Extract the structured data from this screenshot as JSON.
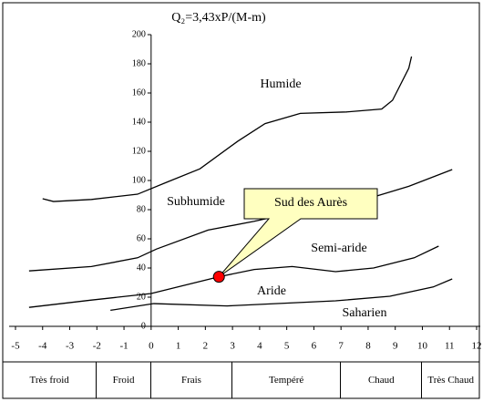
{
  "chart_data": {
    "type": "line",
    "title": "Q₂=3,43xP/(M-m)",
    "xlim": [
      -5,
      12
    ],
    "xticks": [
      -5,
      -4,
      -3,
      -2,
      -1,
      0,
      1,
      2,
      3,
      4,
      5,
      6,
      7,
      8,
      9,
      10,
      11,
      12
    ],
    "ylim": [
      0,
      200
    ],
    "yticks": [
      0,
      20,
      40,
      60,
      80,
      100,
      120,
      140,
      160,
      180,
      200
    ],
    "color": "#000000",
    "series": [
      {
        "x": [
          -4,
          -3.6,
          -2.2,
          -0.5,
          0.6,
          1.8,
          3.2,
          4.2,
          5.5,
          7.2,
          8.5,
          8.9,
          9.5,
          9.6
        ],
        "values": [
          87.5,
          85.6,
          87,
          90.6,
          99,
          108,
          127,
          139,
          146,
          147,
          149,
          155,
          177,
          185
        ]
      },
      {
        "x": [
          -4.5,
          -2.2,
          -0.5,
          0.2,
          2.1,
          3.8,
          5.5,
          7.9,
          9.5,
          11.1
        ],
        "values": [
          38,
          41,
          47,
          53,
          66,
          72,
          79,
          87,
          96,
          107.5
        ]
      },
      {
        "x": [
          -4.5,
          -2.2,
          0,
          2.5,
          3.8,
          5.2,
          6.8,
          8.2,
          9.7,
          10.6
        ],
        "values": [
          13,
          18,
          22.5,
          34,
          39,
          41,
          37.5,
          40,
          47,
          55
        ]
      },
      {
        "x": [
          -1.5,
          0.1,
          2.8,
          6.8,
          8.8,
          10.4,
          11.1
        ],
        "values": [
          11,
          15.6,
          14,
          17.5,
          20.6,
          27,
          32.5
        ]
      }
    ],
    "regions": [
      "Humide",
      "Subhumide",
      "Semi-aride",
      "Aride",
      "Saharien"
    ],
    "point": {
      "x": 2.5,
      "y": 34,
      "label": "Sud des Aurès",
      "color": "#ff0000",
      "box_color": "#ffffc0"
    },
    "zones": [
      {
        "label": "Très froid",
        "from": -5,
        "to": -2
      },
      {
        "label": "Froid",
        "from": -2,
        "to": 0
      },
      {
        "label": "Frais",
        "from": 0,
        "to": 3
      },
      {
        "label": "Tempéré",
        "from": 3,
        "to": 7
      },
      {
        "label": "Chaud",
        "from": 7,
        "to": 10
      },
      {
        "label": "Très Chaud",
        "from": 10,
        "to": 12
      }
    ]
  }
}
